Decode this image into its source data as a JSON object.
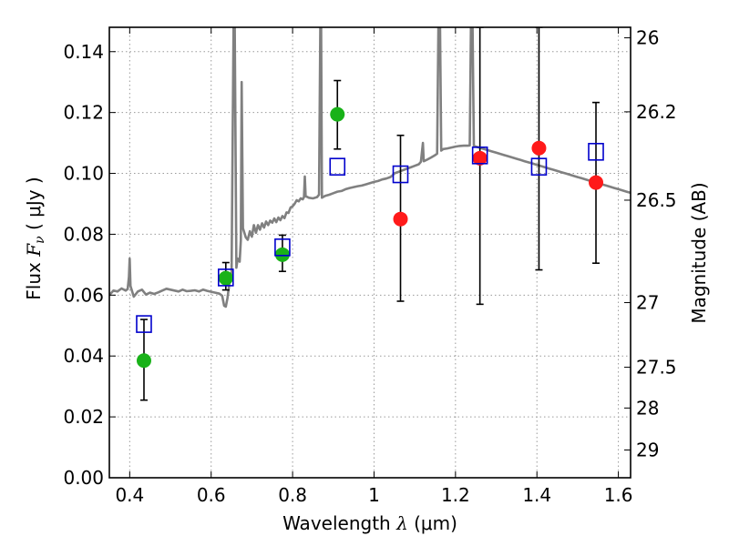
{
  "chart_data": {
    "type": "scatter",
    "xlabel": "Wavelength  λ (μm)",
    "ylabel": "Flux  F_ν  ( μJy )",
    "ylabel_prefix": "Flux ",
    "ylabel_sym_main": "F",
    "ylabel_sym_sub": "ν",
    "ylabel_unit": " ( μJy )",
    "xlabel_prefix": "Wavelength ",
    "xlabel_sym": "λ",
    "xlabel_unit": " (μm)",
    "y2label": "Magnitude (AB)",
    "xlim": [
      0.35,
      1.63
    ],
    "ylim": [
      0.0,
      0.148
    ],
    "grid": true,
    "x_ticks": [
      0.4,
      0.6,
      0.8,
      1.0,
      1.2,
      1.4,
      1.6
    ],
    "x_tick_labels": [
      "0.4",
      "0.6",
      "0.8",
      "1",
      "1.2",
      "1.4",
      "1.6"
    ],
    "y_ticks": [
      0.0,
      0.02,
      0.04,
      0.06,
      0.08,
      0.1,
      0.12,
      0.14
    ],
    "y_tick_labels": [
      "0.00",
      "0.02",
      "0.04",
      "0.06",
      "0.08",
      "0.10",
      "0.12",
      "0.14"
    ],
    "y2_ticks": [
      26,
      26.2,
      26.5,
      27,
      27.5,
      28,
      29
    ],
    "y2_tick_labels": [
      "26",
      "26.2",
      "26.5",
      "27",
      "27.5",
      "28",
      "29"
    ],
    "colors": {
      "model": "#808080",
      "detection": "#19b219",
      "upper": "#ff1a1a",
      "model_photometry": "#0000cc",
      "errorbar": "#000000",
      "grid": "#9a9a9a"
    },
    "series": [
      {
        "marker": "circle",
        "color": "#19b219",
        "points": [
          {
            "x": 0.435,
            "y": 0.0385,
            "yerr_low": 0.0255,
            "yerr_high": 0.052
          },
          {
            "x": 0.636,
            "y": 0.0656,
            "yerr_low": 0.0617,
            "yerr_high": 0.0707
          },
          {
            "x": 0.775,
            "y": 0.0733,
            "yerr_low": 0.0678,
            "yerr_high": 0.0797
          },
          {
            "x": 0.91,
            "y": 0.1194,
            "yerr_low": 0.108,
            "yerr_high": 0.1305
          }
        ]
      },
      {
        "marker": "circle",
        "color": "#ff1a1a",
        "points": [
          {
            "x": 1.065,
            "y": 0.085,
            "yerr_low": 0.058,
            "yerr_high": 0.1125
          },
          {
            "x": 1.26,
            "y": 0.105,
            "yerr_low": 0.057,
            "yerr_high": 0.148
          },
          {
            "x": 1.405,
            "y": 0.1083,
            "yerr_low": 0.0683,
            "yerr_high": 0.148
          },
          {
            "x": 1.545,
            "y": 0.097,
            "yerr_low": 0.0705,
            "yerr_high": 0.1233
          }
        ]
      },
      {
        "marker": "square",
        "color": "#0000cc",
        "points": [
          {
            "x": 0.435,
            "y": 0.0505
          },
          {
            "x": 0.636,
            "y": 0.0658
          },
          {
            "x": 0.775,
            "y": 0.0757
          },
          {
            "x": 0.91,
            "y": 0.1022
          },
          {
            "x": 1.065,
            "y": 0.0997
          },
          {
            "x": 1.26,
            "y": 0.1059
          },
          {
            "x": 1.405,
            "y": 0.1022
          },
          {
            "x": 1.545,
            "y": 0.1071
          }
        ]
      },
      {
        "type": "line",
        "color": "#808080",
        "points": [
          [
            0.35,
            0.06
          ],
          [
            0.36,
            0.0615
          ],
          [
            0.37,
            0.0612
          ],
          [
            0.38,
            0.0622
          ],
          [
            0.39,
            0.0615
          ],
          [
            0.395,
            0.062
          ],
          [
            0.398,
            0.066
          ],
          [
            0.4,
            0.072
          ],
          [
            0.402,
            0.063
          ],
          [
            0.41,
            0.0595
          ],
          [
            0.42,
            0.0612
          ],
          [
            0.43,
            0.0618
          ],
          [
            0.44,
            0.0602
          ],
          [
            0.45,
            0.0608
          ],
          [
            0.46,
            0.0604
          ],
          [
            0.47,
            0.0609
          ],
          [
            0.48,
            0.0615
          ],
          [
            0.49,
            0.0621
          ],
          [
            0.5,
            0.0618
          ],
          [
            0.51,
            0.0615
          ],
          [
            0.52,
            0.0612
          ],
          [
            0.53,
            0.0618
          ],
          [
            0.54,
            0.0613
          ],
          [
            0.55,
            0.0614
          ],
          [
            0.56,
            0.0616
          ],
          [
            0.57,
            0.0612
          ],
          [
            0.58,
            0.0618
          ],
          [
            0.59,
            0.0614
          ],
          [
            0.6,
            0.0611
          ],
          [
            0.61,
            0.0608
          ],
          [
            0.62,
            0.0605
          ],
          [
            0.627,
            0.0598
          ],
          [
            0.632,
            0.0565
          ],
          [
            0.636,
            0.0562
          ],
          [
            0.64,
            0.059
          ],
          [
            0.645,
            0.064
          ],
          [
            0.65,
            0.066
          ],
          [
            0.655,
            0.148
          ],
          [
            0.658,
            0.148
          ],
          [
            0.662,
            0.069
          ],
          [
            0.665,
            0.072
          ],
          [
            0.67,
            0.071
          ],
          [
            0.673,
            0.078
          ],
          [
            0.675,
            0.13
          ],
          [
            0.678,
            0.082
          ],
          [
            0.685,
            0.079
          ],
          [
            0.69,
            0.0782
          ],
          [
            0.695,
            0.081
          ],
          [
            0.7,
            0.0792
          ],
          [
            0.705,
            0.083
          ],
          [
            0.71,
            0.0805
          ],
          [
            0.715,
            0.083
          ],
          [
            0.72,
            0.0815
          ],
          [
            0.725,
            0.0836
          ],
          [
            0.73,
            0.0822
          ],
          [
            0.735,
            0.0842
          ],
          [
            0.74,
            0.083
          ],
          [
            0.745,
            0.0845
          ],
          [
            0.75,
            0.0838
          ],
          [
            0.755,
            0.0852
          ],
          [
            0.76,
            0.084
          ],
          [
            0.765,
            0.0855
          ],
          [
            0.77,
            0.0846
          ],
          [
            0.775,
            0.086
          ],
          [
            0.78,
            0.0853
          ],
          [
            0.785,
            0.0872
          ],
          [
            0.79,
            0.087
          ],
          [
            0.795,
            0.0888
          ],
          [
            0.8,
            0.0892
          ],
          [
            0.805,
            0.09
          ],
          [
            0.81,
            0.0912
          ],
          [
            0.815,
            0.0908
          ],
          [
            0.82,
            0.0918
          ],
          [
            0.825,
            0.0915
          ],
          [
            0.828,
            0.0922
          ],
          [
            0.83,
            0.099
          ],
          [
            0.832,
            0.0925
          ],
          [
            0.84,
            0.092
          ],
          [
            0.85,
            0.0918
          ],
          [
            0.86,
            0.0922
          ],
          [
            0.865,
            0.093
          ],
          [
            0.868,
            0.148
          ],
          [
            0.87,
            0.148
          ],
          [
            0.872,
            0.092
          ],
          [
            0.88,
            0.0926
          ],
          [
            0.89,
            0.093
          ],
          [
            0.9,
            0.0935
          ],
          [
            0.91,
            0.094
          ],
          [
            0.92,
            0.0942
          ],
          [
            0.93,
            0.0948
          ],
          [
            0.94,
            0.0952
          ],
          [
            0.95,
            0.0955
          ],
          [
            0.96,
            0.0958
          ],
          [
            0.97,
            0.096
          ],
          [
            0.98,
            0.0964
          ],
          [
            0.99,
            0.0968
          ],
          [
            1.0,
            0.0972
          ],
          [
            1.01,
            0.0975
          ],
          [
            1.02,
            0.098
          ],
          [
            1.03,
            0.0983
          ],
          [
            1.04,
            0.0988
          ],
          [
            1.045,
            0.0993
          ],
          [
            1.05,
            0.1
          ],
          [
            1.06,
            0.1005
          ],
          [
            1.07,
            0.101
          ],
          [
            1.08,
            0.1015
          ],
          [
            1.09,
            0.102
          ],
          [
            1.1,
            0.1025
          ],
          [
            1.11,
            0.103
          ],
          [
            1.115,
            0.1038
          ],
          [
            1.12,
            0.11
          ],
          [
            1.122,
            0.104
          ],
          [
            1.13,
            0.1045
          ],
          [
            1.14,
            0.1052
          ],
          [
            1.15,
            0.106
          ],
          [
            1.155,
            0.1065
          ],
          [
            1.158,
            0.148
          ],
          [
            1.162,
            0.148
          ],
          [
            1.165,
            0.1075
          ],
          [
            1.17,
            0.108
          ],
          [
            1.18,
            0.1082
          ],
          [
            1.19,
            0.1085
          ],
          [
            1.2,
            0.1088
          ],
          [
            1.21,
            0.109
          ],
          [
            1.22,
            0.1091
          ],
          [
            1.23,
            0.1091
          ],
          [
            1.235,
            0.1092
          ],
          [
            1.238,
            0.148
          ],
          [
            1.242,
            0.148
          ],
          [
            1.245,
            0.109
          ],
          [
            1.25,
            0.1088
          ],
          [
            1.26,
            0.1084
          ],
          [
            1.27,
            0.108
          ],
          [
            1.28,
            0.1076
          ],
          [
            1.29,
            0.1072
          ],
          [
            1.3,
            0.1068
          ],
          [
            1.31,
            0.1064
          ],
          [
            1.32,
            0.106
          ],
          [
            1.33,
            0.1056
          ],
          [
            1.34,
            0.1052
          ],
          [
            1.35,
            0.1048
          ],
          [
            1.36,
            0.1044
          ],
          [
            1.37,
            0.104
          ],
          [
            1.38,
            0.1036
          ],
          [
            1.39,
            0.1032
          ],
          [
            1.4,
            0.1028
          ],
          [
            1.41,
            0.1024
          ],
          [
            1.42,
            0.102
          ],
          [
            1.43,
            0.1016
          ],
          [
            1.44,
            0.1012
          ],
          [
            1.45,
            0.1008
          ],
          [
            1.46,
            0.1004
          ],
          [
            1.47,
            0.1
          ],
          [
            1.48,
            0.0996
          ],
          [
            1.49,
            0.0992
          ],
          [
            1.5,
            0.0988
          ],
          [
            1.51,
            0.0984
          ],
          [
            1.52,
            0.098
          ],
          [
            1.53,
            0.0976
          ],
          [
            1.54,
            0.0972
          ],
          [
            1.55,
            0.0968
          ],
          [
            1.56,
            0.0964
          ],
          [
            1.57,
            0.096
          ],
          [
            1.58,
            0.0956
          ],
          [
            1.59,
            0.0952
          ],
          [
            1.6,
            0.0948
          ],
          [
            1.61,
            0.0944
          ],
          [
            1.62,
            0.094
          ],
          [
            1.63,
            0.0936
          ]
        ]
      }
    ]
  }
}
